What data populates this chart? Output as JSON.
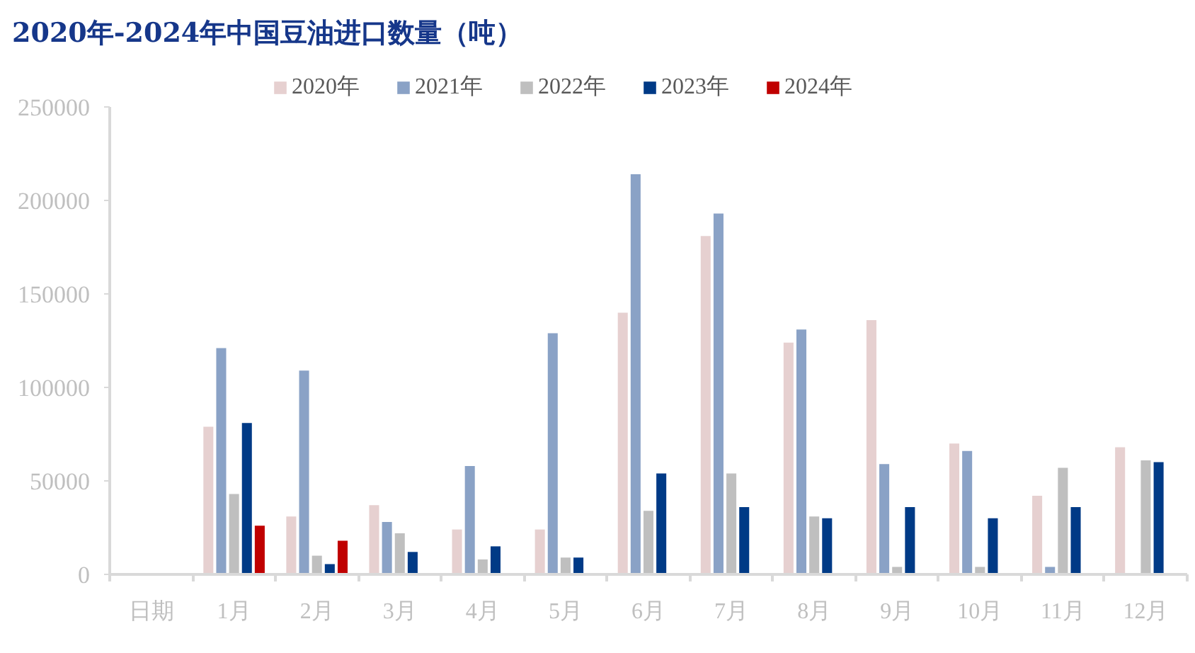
{
  "chart_data": {
    "type": "bar",
    "title": "2020年-2024年中国豆油进口数量（吨）",
    "categories": [
      "日期",
      "1月",
      "2月",
      "3月",
      "4月",
      "5月",
      "6月",
      "7月",
      "8月",
      "9月",
      "10月",
      "11月",
      "12月"
    ],
    "series": [
      {
        "name": "2020年",
        "color": "#e6d0d0",
        "values": [
          null,
          79000,
          31000,
          37000,
          24000,
          24000,
          140000,
          181000,
          124000,
          136000,
          70000,
          42000,
          68000
        ]
      },
      {
        "name": "2021年",
        "color": "#8aa2c6",
        "values": [
          null,
          121000,
          109000,
          28000,
          58000,
          129000,
          214000,
          193000,
          131000,
          59000,
          66000,
          4000,
          null
        ]
      },
      {
        "name": "2022年",
        "color": "#bfbfbf",
        "values": [
          null,
          43000,
          10000,
          22000,
          8000,
          9000,
          34000,
          54000,
          31000,
          4000,
          4000,
          57000,
          61000
        ]
      },
      {
        "name": "2023年",
        "color": "#003a86",
        "values": [
          null,
          81000,
          5500,
          12000,
          15000,
          9000,
          54000,
          36000,
          30000,
          36000,
          30000,
          36000,
          60000
        ]
      },
      {
        "name": "2024年",
        "color": "#c00000",
        "values": [
          null,
          26000,
          18000,
          null,
          null,
          null,
          null,
          null,
          null,
          null,
          null,
          null,
          null
        ]
      }
    ],
    "ylim": [
      0,
      250000
    ],
    "yticks": [
      0,
      50000,
      100000,
      150000,
      200000,
      250000
    ],
    "grid": false,
    "legend": "top"
  }
}
